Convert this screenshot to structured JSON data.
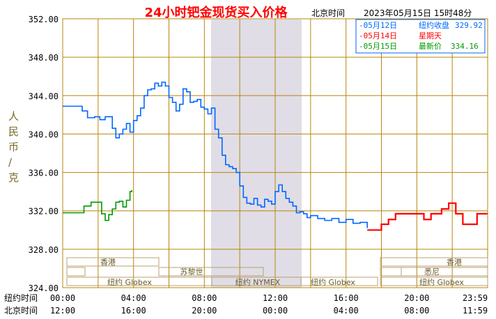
{
  "chart_data": {
    "type": "line",
    "title": "24小时钯金现货买入价格",
    "subtitle_label": "北京时间",
    "timestamp": "2023年05月15日 15时48分",
    "ylabel": "人民币/克",
    "ylim": [
      324,
      352
    ],
    "y_ticks": [
      "352.00",
      "348.00",
      "344.00",
      "340.00",
      "336.00",
      "332.00",
      "328.00",
      "324.00"
    ],
    "x_row1_label": "纽约时间",
    "x_row2_label": "北京时间",
    "x_ticks_ny": [
      "00:00",
      "04:00",
      "08:00",
      "12:00",
      "16:00",
      "20:00",
      "23:59"
    ],
    "x_ticks_bj": [
      "12:00",
      "16:00",
      "20:00",
      "00:00",
      "04:00",
      "08:00",
      "11:59"
    ],
    "legend": [
      {
        "date": "-05月12日",
        "label": "纽约收盘",
        "value": "329.92",
        "color": "#0066ff"
      },
      {
        "date": "-05月14日",
        "label": "星期天",
        "value": "",
        "color": "#ff0000"
      },
      {
        "date": "-05月15日",
        "label": "最新价",
        "value": "334.16",
        "color": "#009900"
      }
    ],
    "market_sessions": [
      "香港",
      "苏黎世",
      "纽约 Globex",
      "纽约 NYMEX",
      "纽约 Globex",
      "香港",
      "悉尼",
      "纽约 Globex"
    ],
    "series": [
      {
        "name": "05月12日",
        "color": "#0066ff",
        "x": [
          0.0,
          0.8,
          1.1,
          1.4,
          1.8,
          2.1,
          2.4,
          2.6,
          2.8,
          3.0,
          3.2,
          3.4,
          3.6,
          3.8,
          4.0,
          4.2,
          4.4,
          4.6,
          4.8,
          5.0,
          5.2,
          5.4,
          5.6,
          5.8,
          6.0,
          6.2,
          6.4,
          6.6,
          6.8,
          7.0,
          7.2,
          7.4,
          7.6,
          7.8,
          8.0,
          8.2,
          8.4,
          8.6,
          8.8,
          9.0,
          9.2,
          9.4,
          9.6,
          9.8,
          10.0,
          10.2,
          10.4,
          10.6,
          10.8,
          11.0,
          11.2,
          11.4,
          11.6,
          11.8,
          12.0,
          12.2,
          12.4,
          12.6,
          12.8,
          13.0,
          13.2,
          13.4,
          13.6,
          13.8,
          14.0,
          14.4,
          14.8,
          15.2,
          15.6,
          16.0,
          16.4,
          16.8,
          17.2
        ],
        "values": [
          342.9,
          342.9,
          342.4,
          341.7,
          341.8,
          341.5,
          341.8,
          341.8,
          340.6,
          339.6,
          340.0,
          340.5,
          341.1,
          340.2,
          341.4,
          341.9,
          342.7,
          344.0,
          344.6,
          344.7,
          345.3,
          345.0,
          345.4,
          345.0,
          343.8,
          343.3,
          342.4,
          343.1,
          344.7,
          344.4,
          343.3,
          343.4,
          343.6,
          342.8,
          342.6,
          342.1,
          342.7,
          340.5,
          339.6,
          337.8,
          336.8,
          336.6,
          336.4,
          336.0,
          334.6,
          333.4,
          332.8,
          332.7,
          333.3,
          332.6,
          332.4,
          333.2,
          333.0,
          332.7,
          334.0,
          334.7,
          334.0,
          333.3,
          332.9,
          332.5,
          331.8,
          331.9,
          331.7,
          331.3,
          331.5,
          331.2,
          331.0,
          331.2,
          330.8,
          331.1,
          330.7,
          330.8,
          330.2
        ]
      },
      {
        "name": "05月14日",
        "color": "#ff0000",
        "x": [
          17.2,
          17.8,
          18.0,
          18.4,
          18.8,
          19.2,
          19.6,
          20.0,
          20.4,
          20.8,
          21.0,
          21.4,
          21.8,
          22.2,
          22.6,
          23.0,
          23.4,
          23.99
        ],
        "values": [
          330.0,
          330.0,
          330.6,
          331.1,
          331.7,
          331.7,
          331.7,
          331.7,
          331.1,
          331.7,
          331.7,
          332.2,
          332.8,
          331.7,
          330.6,
          330.6,
          331.7,
          331.7
        ]
      },
      {
        "name": "05月15日",
        "color": "#009900",
        "x": [
          0.0,
          0.5,
          0.9,
          1.2,
          1.6,
          2.0,
          2.2,
          2.4,
          2.6,
          2.8,
          3.0,
          3.2,
          3.4,
          3.6,
          3.8,
          3.9
        ],
        "values": [
          331.8,
          331.8,
          331.8,
          332.5,
          332.9,
          332.9,
          331.7,
          331.0,
          331.6,
          332.2,
          332.9,
          333.0,
          332.4,
          333.1,
          334.0,
          334.16
        ]
      }
    ]
  }
}
